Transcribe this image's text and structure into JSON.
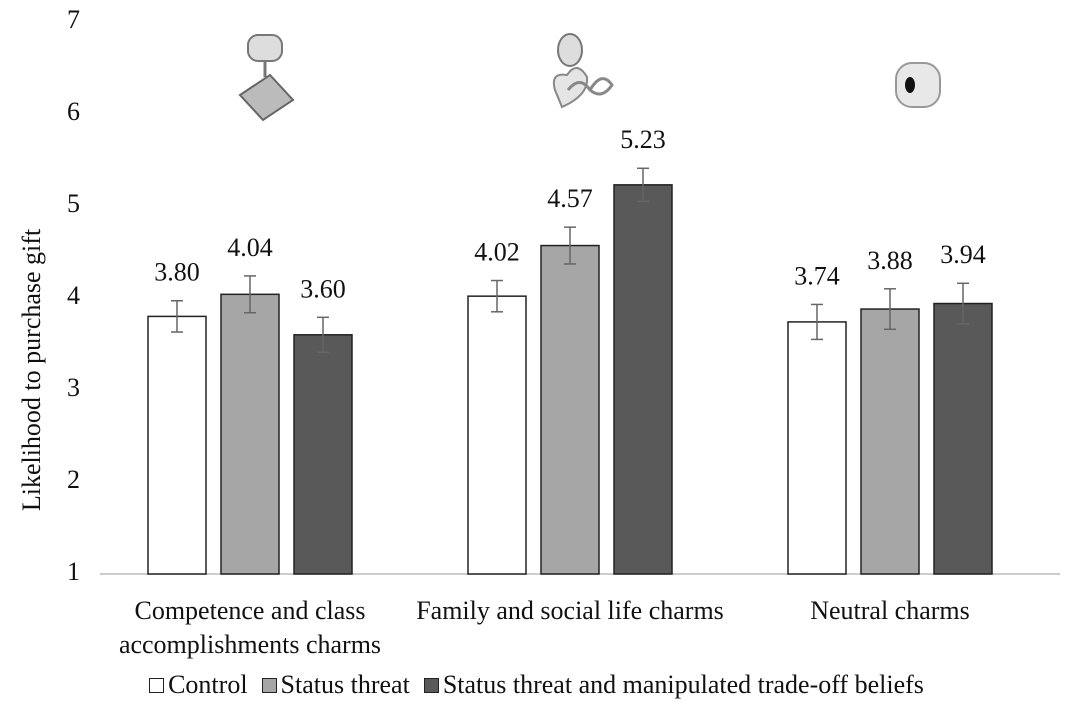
{
  "chart_data": {
    "type": "bar",
    "y_label": "Likelihood to purchase gift",
    "categories": [
      "Competence and class accomplishments charms",
      "Family and social life charms",
      "Neutral charms"
    ],
    "series": [
      {
        "name": "Control",
        "color": "#ffffff",
        "values": [
          3.8,
          4.02,
          3.74
        ],
        "value_labels": [
          "3.80",
          "4.02",
          "3.74"
        ],
        "errors": [
          0.17,
          0.17,
          0.19
        ]
      },
      {
        "name": "Status threat",
        "color": "#a6a6a6",
        "values": [
          4.04,
          4.57,
          3.88
        ],
        "value_labels": [
          "4.04",
          "4.57",
          "3.88"
        ],
        "errors": [
          0.2,
          0.2,
          0.22
        ]
      },
      {
        "name": "Status threat and manipulated trade-off beliefs",
        "color": "#595959",
        "values": [
          3.6,
          5.23,
          3.94
        ],
        "value_labels": [
          "3.60",
          "5.23",
          "3.94"
        ],
        "errors": [
          0.19,
          0.18,
          0.22
        ]
      }
    ],
    "ylim": [
      1,
      7
    ],
    "yticks": [
      1,
      2,
      3,
      4,
      5,
      6,
      7
    ],
    "grid": false,
    "legend": "bottom"
  }
}
